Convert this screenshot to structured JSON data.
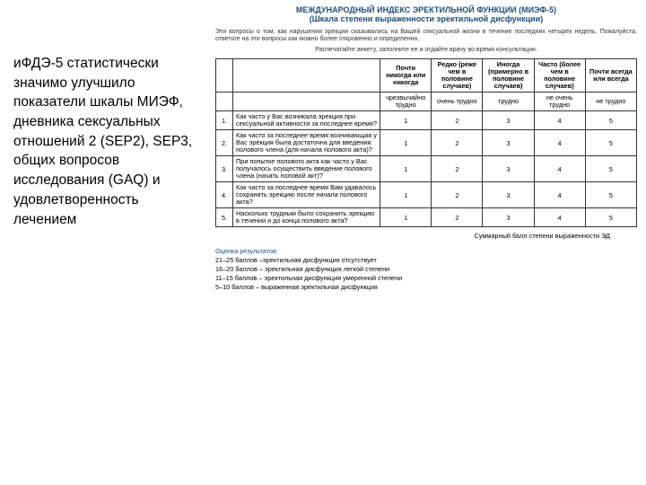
{
  "left_text": "иФДЭ-5 статистически значимо улучшило показатели шкалы МИЭФ, дневника сексуальных отношений 2 (SEP2), SEP3, общих вопросов исследования (GAQ) и удовлетворенность лечением",
  "header": {
    "line1": "МЕЖДУНАРОДНЫЙ ИНДЕКС ЭРЕКТИЛЬНОЙ ФУНКЦИИ (МИЭФ-5)",
    "line2": "(Шкала степени выраженности эректильной дисфункции)",
    "intro": "Эти вопросы о том, как нарушения эрекции сказывались на Вашей сексуальной жизни в течение последних четырех недель. Пожалуйста, ответьте на эти вопросы как можно более откровенно и определенно.",
    "print": "Распечатайте анкету, заполните ее и отдайте врачу во время консультации."
  },
  "columns": [
    "Почти никогда или никогда",
    "Редко (реже чем в половине случаев)",
    "Иногда (примерно в половине случаев)",
    "Часто (более чем в половине случаев)",
    "Почти всегда или всегда"
  ],
  "difficulty_row": [
    "чрезвычайно трудно",
    "очень трудно",
    "трудно",
    "не очень трудно",
    "не трудно"
  ],
  "questions": [
    {
      "n": "1.",
      "q": "Как часто у Вас возникала эрекция при сексуальной активности за последнее время?"
    },
    {
      "n": "2.",
      "q": "Как часто за последнее время возникающая у Вас эрекция была достаточна для введения полового члена (для начала полового акта)?"
    },
    {
      "n": "3.",
      "q": "При попытке полового акта как часто у Вас получалось осуществить введение полового члена (начать половой акт)?"
    },
    {
      "n": "4.",
      "q": "Как часто за последнее время Вам удавалось сохранить эрекцию после начала полового акта?"
    },
    {
      "n": "5.",
      "q": "Насколько трудным было сохранить эрекцию в течении и до конца полового акта?"
    }
  ],
  "scores": [
    "1",
    "2",
    "3",
    "4",
    "5"
  ],
  "summary_label": "Суммарный балл степени выраженности ЭД",
  "results": {
    "title": "Оценка результатов:",
    "lines": [
      "21–25 баллов  –эректильная дисфункция отсутствует",
      "16–20 баллов  – эректильная дисфункция легкой степени",
      "11–15 баллов  – эректильная дисфункция умеренной степени",
      "5–10 баллов   – выраженная эректильная дисфункция"
    ]
  },
  "style": {
    "bg": "#ffffff",
    "text": "#000000",
    "accent": "#1f4e79",
    "border": "#333333"
  }
}
